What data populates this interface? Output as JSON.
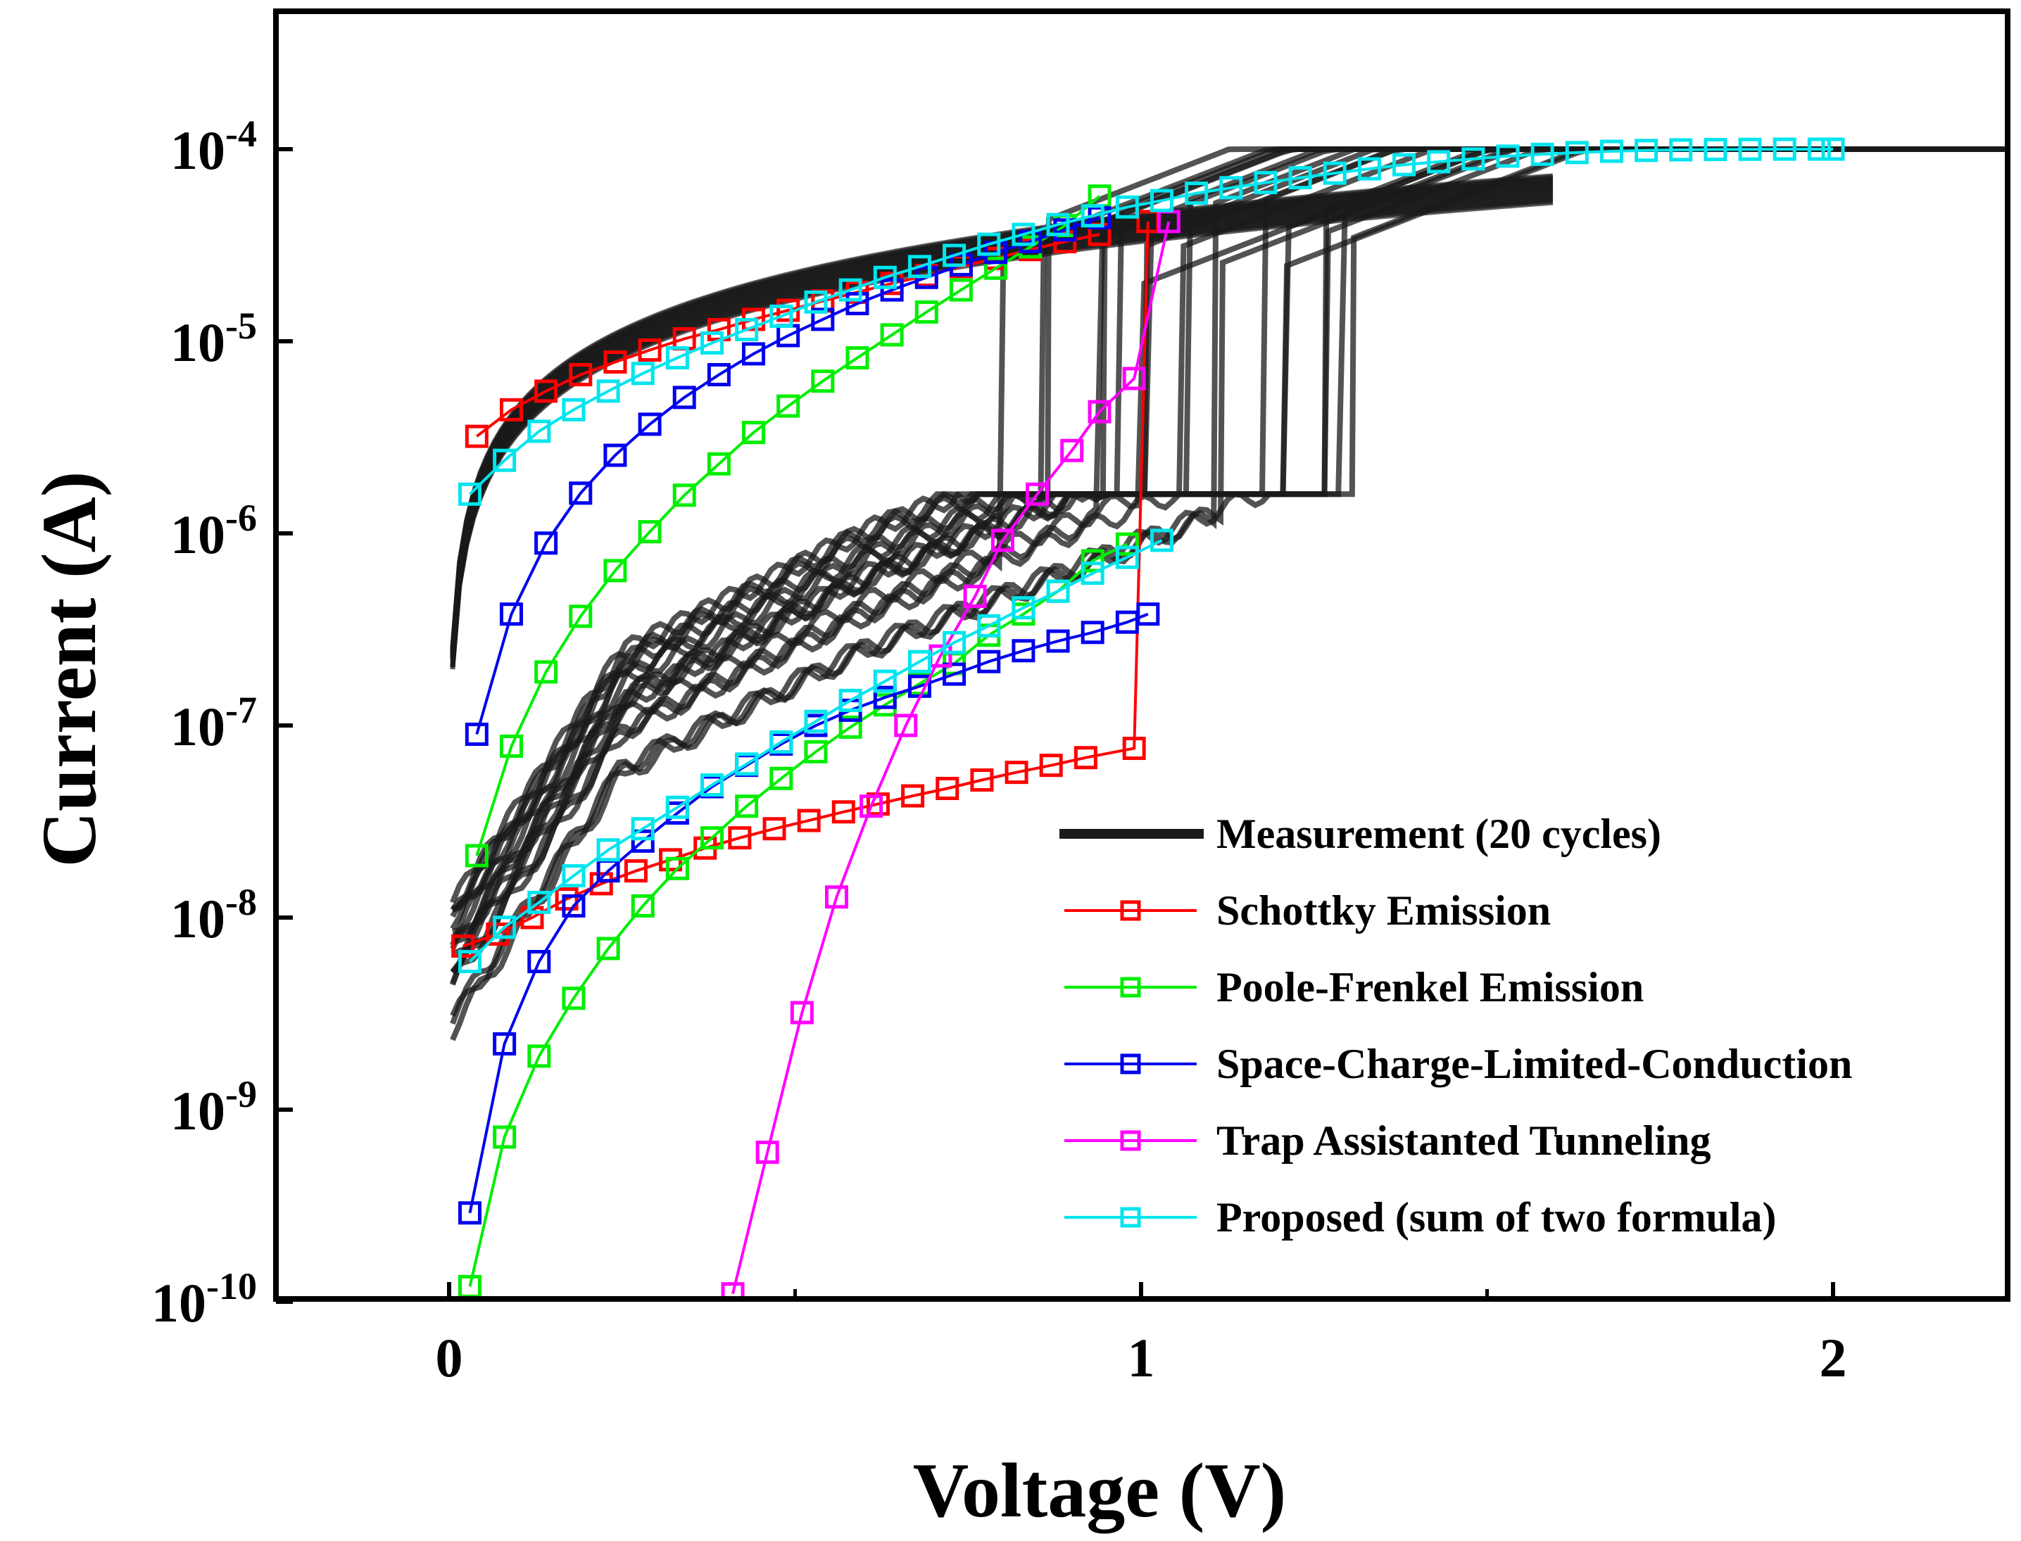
{
  "chart_data": {
    "type": "line",
    "xlabel": "Voltage (V)",
    "ylabel": "Current (A)",
    "xlim": [
      -0.25,
      2.25
    ],
    "ylim_log10": [
      -10,
      -3.3
    ],
    "y_scale": "log",
    "x_ticks": [
      {
        "value": 0,
        "label": "0"
      },
      {
        "value": 1,
        "label": "1"
      },
      {
        "value": 2,
        "label": "2"
      }
    ],
    "y_ticks": [
      {
        "exp": -4,
        "base": "10",
        "sup": "-4"
      },
      {
        "exp": -5,
        "base": "10",
        "sup": "-5"
      },
      {
        "exp": -6,
        "base": "10",
        "sup": "-6"
      },
      {
        "exp": -7,
        "base": "10",
        "sup": "-7"
      },
      {
        "exp": -8,
        "base": "10",
        "sup": "-8"
      },
      {
        "exp": -9,
        "base": "10",
        "sup": "-9"
      },
      {
        "exp": -10,
        "base": "10",
        "sup": "-10"
      }
    ],
    "legend_position": "lower-right",
    "measurement": {
      "name": "Measurement (20 cycles)",
      "color": "#1a1a1a",
      "compliance_current": 0.0001
    },
    "series": [
      {
        "name": "Schottky Emission",
        "color": "#ff0000",
        "hrs": {
          "x": [
            0.02,
            0.07,
            0.12,
            0.17,
            0.22,
            0.27,
            0.32,
            0.37,
            0.42,
            0.47,
            0.52,
            0.57,
            0.62,
            0.67,
            0.72,
            0.77,
            0.82,
            0.87,
            0.92,
            0.99,
            1.01
          ],
          "y": [
            7.1e-09,
            8.2e-09,
            1e-08,
            1.25e-08,
            1.5e-08,
            1.75e-08,
            2e-08,
            2.3e-08,
            2.6e-08,
            2.9e-08,
            3.2e-08,
            3.55e-08,
            3.9e-08,
            4.3e-08,
            4.7e-08,
            5.2e-08,
            5.7e-08,
            6.2e-08,
            6.8e-08,
            7.6e-08,
            4.2e-05
          ]
        },
        "lrs": {
          "x": [
            0.04,
            0.09,
            0.14,
            0.19,
            0.24,
            0.29,
            0.34,
            0.39,
            0.44,
            0.49,
            0.54,
            0.59,
            0.64,
            0.69,
            0.74,
            0.79,
            0.84,
            0.89,
            0.94
          ],
          "y": [
            3.2e-06,
            4.4e-06,
            5.5e-06,
            6.7e-06,
            7.8e-06,
            9e-06,
            1.03e-05,
            1.15e-05,
            1.3e-05,
            1.45e-05,
            1.62e-05,
            1.8e-05,
            2e-05,
            2.2e-05,
            2.45e-05,
            2.7e-05,
            3e-05,
            3.3e-05,
            3.6e-05
          ]
        }
      },
      {
        "name": "Poole-Frenkel Emission",
        "color": "#00ee00",
        "hrs": {
          "x": [
            0.03,
            0.08,
            0.13,
            0.18,
            0.23,
            0.28,
            0.33,
            0.38,
            0.43,
            0.48,
            0.53,
            0.58,
            0.63,
            0.68,
            0.73,
            0.78,
            0.83,
            0.88,
            0.93,
            0.98
          ],
          "y": [
            1.2e-10,
            7.2e-10,
            1.9e-09,
            3.8e-09,
            6.9e-09,
            1.15e-08,
            1.8e-08,
            2.6e-08,
            3.8e-08,
            5.3e-08,
            7.3e-08,
            9.8e-08,
            1.28e-07,
            1.65e-07,
            2.1e-07,
            2.95e-07,
            3.8e-07,
            5e-07,
            7.2e-07,
            8.8e-07
          ]
        },
        "lrs": {
          "x": [
            0.04,
            0.09,
            0.14,
            0.19,
            0.24,
            0.29,
            0.34,
            0.39,
            0.44,
            0.49,
            0.54,
            0.59,
            0.64,
            0.69,
            0.74,
            0.79,
            0.84,
            0.89,
            0.94
          ],
          "y": [
            2.1e-08,
            7.8e-08,
            1.9e-07,
            3.7e-07,
            6.4e-07,
            1.02e-06,
            1.58e-06,
            2.3e-06,
            3.35e-06,
            4.6e-06,
            6.2e-06,
            8.2e-06,
            1.08e-05,
            1.42e-05,
            1.85e-05,
            2.4e-05,
            3.1e-05,
            4e-05,
            5.7e-05
          ]
        }
      },
      {
        "name": "Space-Charge-Limited-Conduction",
        "color": "#0000ee",
        "hrs": {
          "x": [
            0.03,
            0.08,
            0.13,
            0.18,
            0.23,
            0.28,
            0.33,
            0.38,
            0.43,
            0.48,
            0.53,
            0.58,
            0.63,
            0.68,
            0.73,
            0.78,
            0.83,
            0.88,
            0.93,
            0.98,
            1.01
          ],
          "y": [
            2.9e-10,
            2.2e-09,
            5.9e-09,
            1.15e-08,
            1.75e-08,
            2.5e-08,
            3.5e-08,
            4.8e-08,
            6.2e-08,
            8e-08,
            1e-07,
            1.2e-07,
            1.4e-07,
            1.6e-07,
            1.85e-07,
            2.15e-07,
            2.45e-07,
            2.75e-07,
            3.05e-07,
            3.45e-07,
            3.8e-07
          ]
        },
        "lrs": {
          "x": [
            0.04,
            0.09,
            0.14,
            0.19,
            0.24,
            0.29,
            0.34,
            0.39,
            0.44,
            0.49,
            0.54,
            0.59,
            0.64,
            0.69,
            0.74,
            0.79,
            0.84,
            0.89,
            0.94
          ],
          "y": [
            9e-08,
            3.8e-07,
            8.9e-07,
            1.62e-06,
            2.55e-06,
            3.7e-06,
            5.1e-06,
            6.7e-06,
            8.6e-06,
            1.07e-05,
            1.3e-05,
            1.57e-05,
            1.85e-05,
            2.15e-05,
            2.5e-05,
            2.9e-05,
            3.3e-05,
            3.8e-05,
            4.4e-05
          ]
        }
      },
      {
        "name": "Trap Assistanted Tunneling",
        "color": "#ff00ff",
        "hrs": {
          "x": [
            0.41,
            0.46,
            0.51,
            0.56,
            0.61,
            0.66,
            0.71,
            0.76,
            0.8,
            0.85,
            0.9,
            0.94,
            0.99,
            1.04
          ],
          "y": [
            1.1e-10,
            6e-10,
            3.2e-09,
            1.28e-08,
            3.8e-08,
            1e-07,
            2.3e-07,
            4.7e-07,
            9.2e-07,
            1.6e-06,
            2.7e-06,
            4.3e-06,
            6.4e-06,
            4.2e-05
          ]
        }
      },
      {
        "name": "Proposed (sum of two formula)",
        "color": "#00e5ee",
        "hrs": {
          "x": [
            0.03,
            0.08,
            0.13,
            0.18,
            0.23,
            0.28,
            0.33,
            0.38,
            0.43,
            0.48,
            0.53,
            0.58,
            0.63,
            0.68,
            0.73,
            0.78,
            0.83,
            0.88,
            0.93,
            0.98,
            1.03
          ],
          "y": [
            5.9e-09,
            8.9e-09,
            1.2e-08,
            1.65e-08,
            2.25e-08,
            2.9e-08,
            3.75e-08,
            4.9e-08,
            6.3e-08,
            8.2e-08,
            1.05e-07,
            1.35e-07,
            1.7e-07,
            2.15e-07,
            2.7e-07,
            3.3e-07,
            4.1e-07,
            5e-07,
            6.2e-07,
            7.5e-07,
            9.2e-07
          ]
        },
        "lrs": {
          "x": [
            0.03,
            0.08,
            0.13,
            0.18,
            0.23,
            0.28,
            0.33,
            0.38,
            0.43,
            0.48,
            0.53,
            0.58,
            0.63,
            0.68,
            0.73,
            0.78,
            0.83,
            0.88,
            0.93,
            0.98,
            1.03,
            1.08,
            1.13,
            1.18,
            1.23,
            1.28,
            1.33,
            1.38,
            1.43,
            1.48,
            1.53,
            1.58,
            1.63,
            1.68,
            1.73,
            1.78,
            1.83,
            1.88,
            1.93,
            1.98,
            2.0
          ],
          "y": [
            1.6e-06,
            2.4e-06,
            3.4e-06,
            4.4e-06,
            5.5e-06,
            6.8e-06,
            8.2e-06,
            9.8e-06,
            1.15e-05,
            1.35e-05,
            1.6e-05,
            1.85e-05,
            2.15e-05,
            2.45e-05,
            2.8e-05,
            3.2e-05,
            3.6e-05,
            4.05e-05,
            4.5e-05,
            5e-05,
            5.4e-05,
            5.9e-05,
            6.3e-05,
            6.7e-05,
            7.1e-05,
            7.5e-05,
            7.9e-05,
            8.3e-05,
            8.6e-05,
            8.9e-05,
            9.2e-05,
            9.4e-05,
            9.6e-05,
            9.75e-05,
            9.85e-05,
            9.92e-05,
            9.96e-05,
            9.98e-05,
            0.0001,
            0.0001,
            0.0001
          ]
        }
      }
    ]
  }
}
